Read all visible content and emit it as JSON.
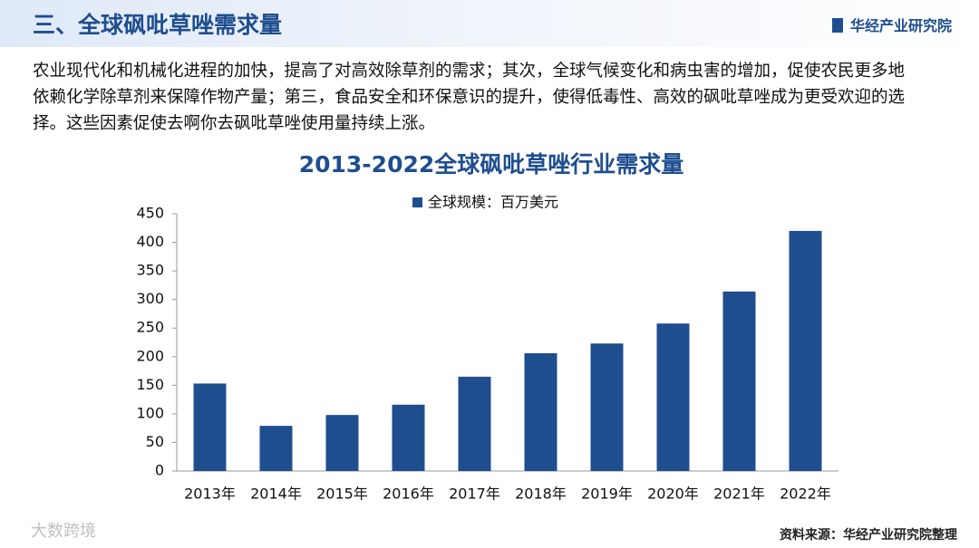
{
  "header": {
    "title": "三、全球砜吡草唑需求量",
    "logo": "华经产业研究院"
  },
  "paragraph": [
    "农业现代化和机械化进程的加快，提高了对高效除草剂的需求；其次，全球气候变化和病虫害的增加，促使农民更多地",
    "依赖化学除草剂来保障作物产量；第三，食品安全和环保意识的提升，使得低毒性、高效的砜吡草唑成为更受欢迎的选",
    "择。这些因素促使去啊你去砜吡草唑使用量持续上涨。"
  ],
  "source": "资料来源：华经产业研究院整理",
  "watermark": "大数跨境",
  "chart_data": {
    "type": "bar",
    "title": "2013-2022全球砜吡草唑行业需求量",
    "categories": [
      "2013年",
      "2014年",
      "2015年",
      "2016年",
      "2017年",
      "2018年",
      "2019年",
      "2020年",
      "2021年",
      "2022年"
    ],
    "series": [
      {
        "name": "全球规模：百万美元",
        "color": "#1f4e8f",
        "values": [
          153,
          79,
          98,
          116,
          165,
          206,
          223,
          258,
          314,
          420
        ]
      }
    ],
    "ylim": [
      0,
      450
    ],
    "yticks": [
      0,
      50,
      100,
      150,
      200,
      250,
      300,
      350,
      400,
      450
    ],
    "grid": false,
    "legend": "top"
  }
}
